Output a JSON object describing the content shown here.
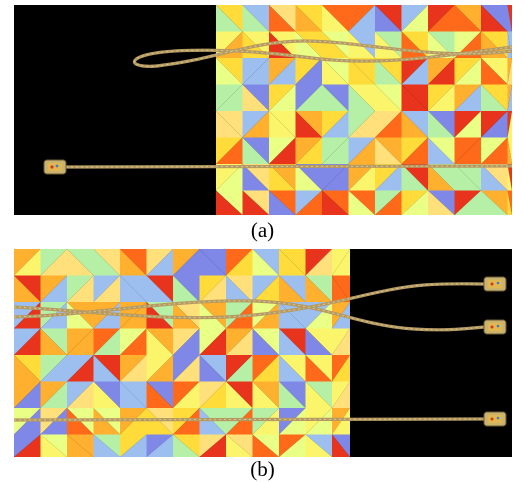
{
  "figure": {
    "panels": [
      {
        "id": "a",
        "caption": "(a)",
        "scene": "cable-on-patterned-background",
        "background_side": "right"
      },
      {
        "id": "b",
        "caption": "(b)",
        "scene": "cable-on-patterned-background",
        "background_side": "left"
      }
    ],
    "palette": [
      "#ff6a1a",
      "#ffb02e",
      "#ffdc3a",
      "#faf56a",
      "#e9ff85",
      "#b6f0a6",
      "#9dbff0",
      "#7f88e6",
      "#e8341c",
      "#ffe07a"
    ],
    "colors": {
      "backdrop": "#000000",
      "cable": "#b59a62",
      "cable_highlight": "#d8c592",
      "cable_tip": "#c9b36f"
    }
  }
}
